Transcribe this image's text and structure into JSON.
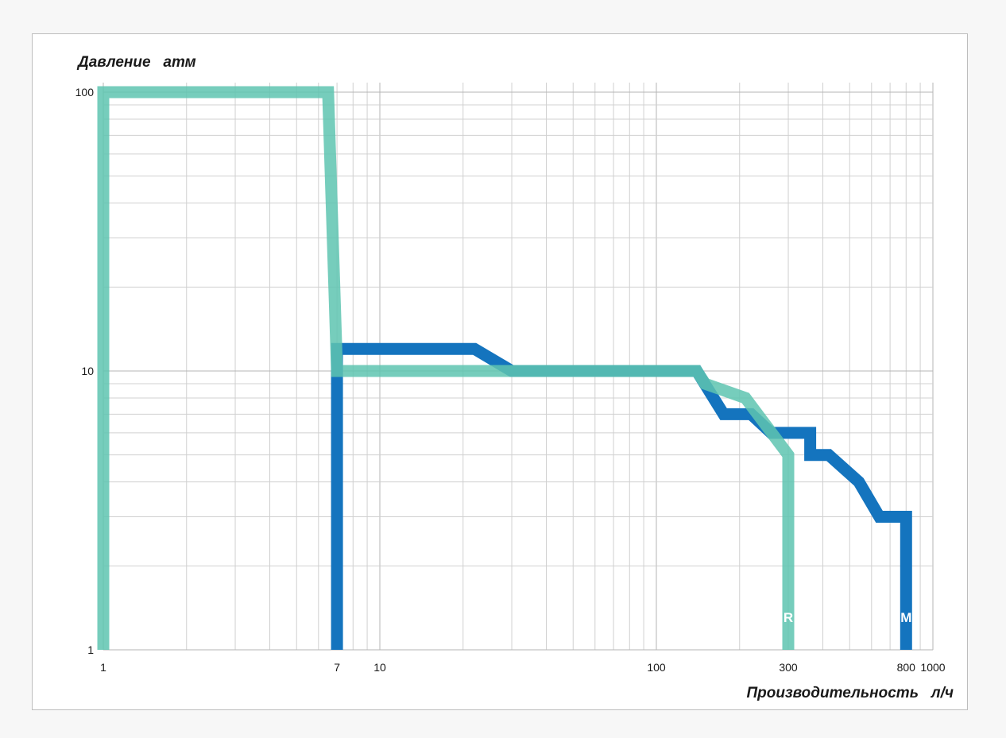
{
  "chart_data": {
    "type": "line",
    "title": "",
    "ylabel": "Давление   атм",
    "xlabel": "Производительность   л/ч",
    "x_scale": "log",
    "y_scale": "log",
    "xlim": [
      1,
      1000
    ],
    "ylim": [
      1,
      100
    ],
    "grid": true,
    "x_tick_labels": [
      "1",
      "7",
      "10",
      "100",
      "300",
      "800",
      "1000"
    ],
    "y_tick_labels": [
      "100",
      "10",
      "1"
    ],
    "series": [
      {
        "name": "M",
        "color": "#1474be",
        "x": [
          7,
          7,
          22,
          30,
          140,
          155,
          175,
          220,
          260,
          360,
          360,
          420,
          540,
          640,
          800,
          800
        ],
        "y": [
          1,
          12,
          12,
          10,
          10,
          8.5,
          7,
          7,
          6,
          6,
          5,
          5,
          4,
          3,
          3,
          1
        ]
      },
      {
        "name": "R",
        "color": "#5ec4b0",
        "x": [
          1,
          1,
          6.5,
          7,
          30,
          140,
          150,
          210,
          300,
          300
        ],
        "y": [
          1,
          100,
          100,
          10,
          10,
          10,
          9,
          8,
          5,
          1
        ]
      }
    ]
  }
}
